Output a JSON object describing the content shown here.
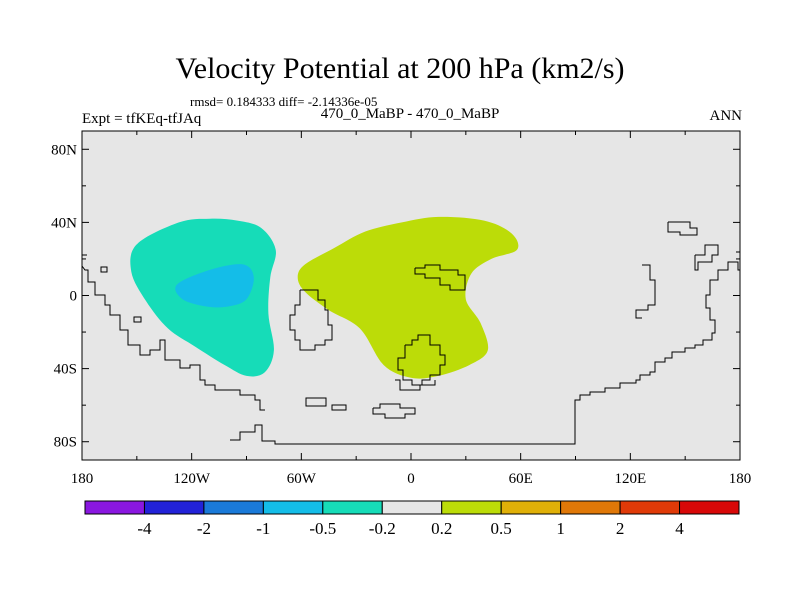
{
  "title": "Velocity Potential at 200 hPa (km2/s)",
  "stats": "rmsd= 0.184333 diff= -2.14336e-05",
  "left_label": "Expt = tfKEq-tfJAq",
  "center_label": "470_0_MaBP - 470_0_MaBP",
  "right_label": "ANN",
  "map": {
    "projection": "cylindrical-equidistant",
    "lon_range": [
      -180,
      180
    ],
    "lat_range": [
      -90,
      90
    ],
    "background_color": "#e6e6e6",
    "x_ticks": [
      {
        "lon": -180,
        "label": "180"
      },
      {
        "lon": -120,
        "label": "120W"
      },
      {
        "lon": -60,
        "label": "60W"
      },
      {
        "lon": 0,
        "label": "0"
      },
      {
        "lon": 60,
        "label": "60E"
      },
      {
        "lon": 120,
        "label": "120E"
      },
      {
        "lon": 180,
        "label": "180"
      }
    ],
    "y_ticks": [
      {
        "lat": 80,
        "label": "80N"
      },
      {
        "lat": 40,
        "label": "40N"
      },
      {
        "lat": 0,
        "label": "0"
      },
      {
        "lat": -40,
        "label": "40S"
      },
      {
        "lat": -80,
        "label": "80S"
      }
    ]
  },
  "colorbar": {
    "colors": [
      "#8a17e0",
      "#2222d8",
      "#1a7ad9",
      "#14bde8",
      "#16dcb8",
      "#e6e6e6",
      "#bcdc08",
      "#e0b008",
      "#e07808",
      "#e03a08",
      "#d80808"
    ],
    "labels": [
      "-4",
      "-2",
      "-1",
      "-0.5",
      "-0.2",
      "0.2",
      "0.5",
      "1",
      "2",
      "4"
    ]
  },
  "chart_data": {
    "type": "heatmap",
    "title": "Velocity Potential at 200 hPa (km2/s)",
    "contour_levels": [
      -4,
      -2,
      -1,
      -0.5,
      -0.2,
      0.2,
      0.5,
      1,
      2,
      4
    ],
    "shaded_regions": [
      {
        "range": [
          -0.5,
          -0.2
        ],
        "color": "#16dcb8",
        "outline": [
          [
            -150,
            28
          ],
          [
            -127,
            40
          ],
          [
            -110,
            42
          ],
          [
            -95,
            41
          ],
          [
            -82,
            37
          ],
          [
            -74,
            25
          ],
          [
            -77,
            10
          ],
          [
            -78,
            -10
          ],
          [
            -75,
            -30
          ],
          [
            -80,
            -42
          ],
          [
            -90,
            -44
          ],
          [
            -102,
            -38
          ],
          [
            -118,
            -28
          ],
          [
            -133,
            -18
          ],
          [
            -145,
            -3
          ],
          [
            -153,
            13
          ]
        ]
      },
      {
        "range": [
          -1,
          -0.5
        ],
        "color": "#14bde8",
        "outline": [
          [
            -128,
            6
          ],
          [
            -110,
            14
          ],
          [
            -92,
            17
          ],
          [
            -86,
            10
          ],
          [
            -90,
            -2
          ],
          [
            -100,
            -6
          ],
          [
            -112,
            -6
          ],
          [
            -125,
            -2
          ]
        ]
      },
      {
        "range": [
          0.2,
          0.5
        ],
        "color": "#bcdc08",
        "outline": [
          [
            -58,
            17
          ],
          [
            -42,
            26
          ],
          [
            -25,
            35
          ],
          [
            -5,
            40
          ],
          [
            15,
            43
          ],
          [
            40,
            41
          ],
          [
            55,
            34
          ],
          [
            58,
            25
          ],
          [
            44,
            20
          ],
          [
            33,
            12
          ],
          [
            30,
            -2
          ],
          [
            38,
            -15
          ],
          [
            42,
            -30
          ],
          [
            32,
            -38
          ],
          [
            15,
            -44
          ],
          [
            0,
            -45
          ],
          [
            -15,
            -38
          ],
          [
            -28,
            -18
          ],
          [
            -45,
            -8
          ],
          [
            -58,
            2
          ],
          [
            -62,
            10
          ]
        ]
      }
    ]
  }
}
